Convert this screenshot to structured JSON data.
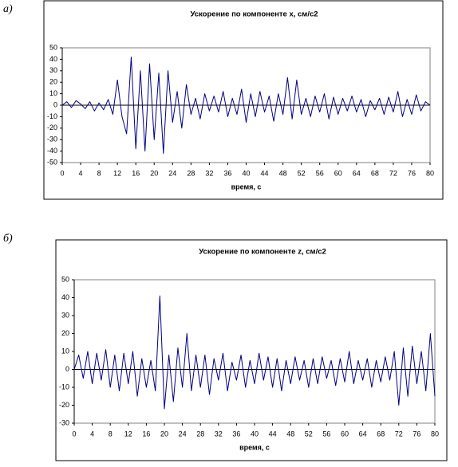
{
  "chart_data": [
    {
      "type": "line",
      "panel_label": "а)",
      "title": "Ускорение по компоненте x, см/с2",
      "x_label": "время, с",
      "x": [
        0,
        1,
        2,
        3,
        4,
        5,
        6,
        7,
        8,
        9,
        10,
        11,
        12,
        13,
        14,
        15,
        16,
        17,
        18,
        19,
        20,
        21,
        22,
        23,
        24,
        25,
        26,
        27,
        28,
        29,
        30,
        31,
        32,
        33,
        34,
        35,
        36,
        37,
        38,
        39,
        40,
        41,
        42,
        43,
        44,
        45,
        46,
        47,
        48,
        49,
        50,
        51,
        52,
        53,
        54,
        55,
        56,
        57,
        58,
        59,
        60,
        61,
        62,
        63,
        64,
        65,
        66,
        67,
        68,
        69,
        70,
        71,
        72,
        73,
        74,
        75,
        76,
        77,
        78,
        79,
        80
      ],
      "series": [
        {
          "name": "x",
          "color": "#000080",
          "values": [
            0,
            3,
            -2,
            4,
            1,
            -3,
            3,
            -5,
            2,
            -4,
            5,
            -8,
            22,
            -10,
            -25,
            42,
            -38,
            30,
            -40,
            36,
            -30,
            28,
            -42,
            30,
            -15,
            12,
            -20,
            18,
            -8,
            6,
            -12,
            10,
            -5,
            8,
            -6,
            12,
            -10,
            6,
            -8,
            14,
            -15,
            10,
            -10,
            12,
            -6,
            8,
            -14,
            10,
            -8,
            24,
            -12,
            22,
            -8,
            6,
            -10,
            8,
            -6,
            10,
            -12,
            7,
            -8,
            6,
            -5,
            8,
            -6,
            5,
            -10,
            4,
            -4,
            6,
            -8,
            7,
            -6,
            12,
            -10,
            5,
            -8,
            9,
            -5,
            3,
            0
          ]
        }
      ],
      "xlim": [
        0,
        80
      ],
      "xticks": [
        0,
        4,
        8,
        12,
        16,
        20,
        24,
        28,
        32,
        36,
        40,
        44,
        48,
        52,
        56,
        60,
        64,
        68,
        72,
        76,
        80
      ],
      "ylim": [
        -50,
        50
      ],
      "yticks": [
        -50,
        -40,
        -30,
        -20,
        -10,
        0,
        10,
        20,
        30,
        40,
        50
      ]
    },
    {
      "type": "line",
      "panel_label": "б)",
      "title": "Ускорение по компоненте z, см/с2",
      "x_label": "время, с",
      "x": [
        0,
        1,
        2,
        3,
        4,
        5,
        6,
        7,
        8,
        9,
        10,
        11,
        12,
        13,
        14,
        15,
        16,
        17,
        18,
        19,
        20,
        21,
        22,
        23,
        24,
        25,
        26,
        27,
        28,
        29,
        30,
        31,
        32,
        33,
        34,
        35,
        36,
        37,
        38,
        39,
        40,
        41,
        42,
        43,
        44,
        45,
        46,
        47,
        48,
        49,
        50,
        51,
        52,
        53,
        54,
        55,
        56,
        57,
        58,
        59,
        60,
        61,
        62,
        63,
        64,
        65,
        66,
        67,
        68,
        69,
        70,
        71,
        72,
        73,
        74,
        75,
        76,
        77,
        78,
        79,
        80
      ],
      "series": [
        {
          "name": "z",
          "color": "#000080",
          "values": [
            0,
            8,
            -5,
            10,
            -8,
            9,
            -6,
            11,
            -10,
            8,
            -12,
            9,
            -8,
            10,
            -15,
            6,
            -10,
            5,
            -12,
            41,
            -22,
            8,
            -18,
            12,
            -10,
            20,
            -12,
            8,
            -10,
            8,
            -14,
            6,
            -6,
            9,
            -12,
            4,
            -6,
            8,
            -10,
            5,
            -8,
            9,
            -6,
            7,
            -10,
            6,
            -12,
            5,
            -8,
            7,
            -6,
            5,
            -10,
            6,
            -8,
            7,
            -5,
            5,
            -9,
            6,
            -7,
            10,
            -8,
            5,
            -6,
            6,
            -10,
            5,
            -7,
            7,
            -6,
            10,
            -20,
            12,
            -15,
            13,
            -8,
            10,
            -12,
            20,
            -15
          ]
        }
      ],
      "xlim": [
        0,
        80
      ],
      "xticks": [
        0,
        4,
        8,
        12,
        16,
        20,
        24,
        28,
        32,
        36,
        40,
        44,
        48,
        52,
        56,
        60,
        64,
        68,
        72,
        76,
        80
      ],
      "ylim": [
        -30,
        50
      ],
      "yticks": [
        -30,
        -20,
        -10,
        0,
        10,
        20,
        30,
        40,
        50
      ]
    }
  ]
}
